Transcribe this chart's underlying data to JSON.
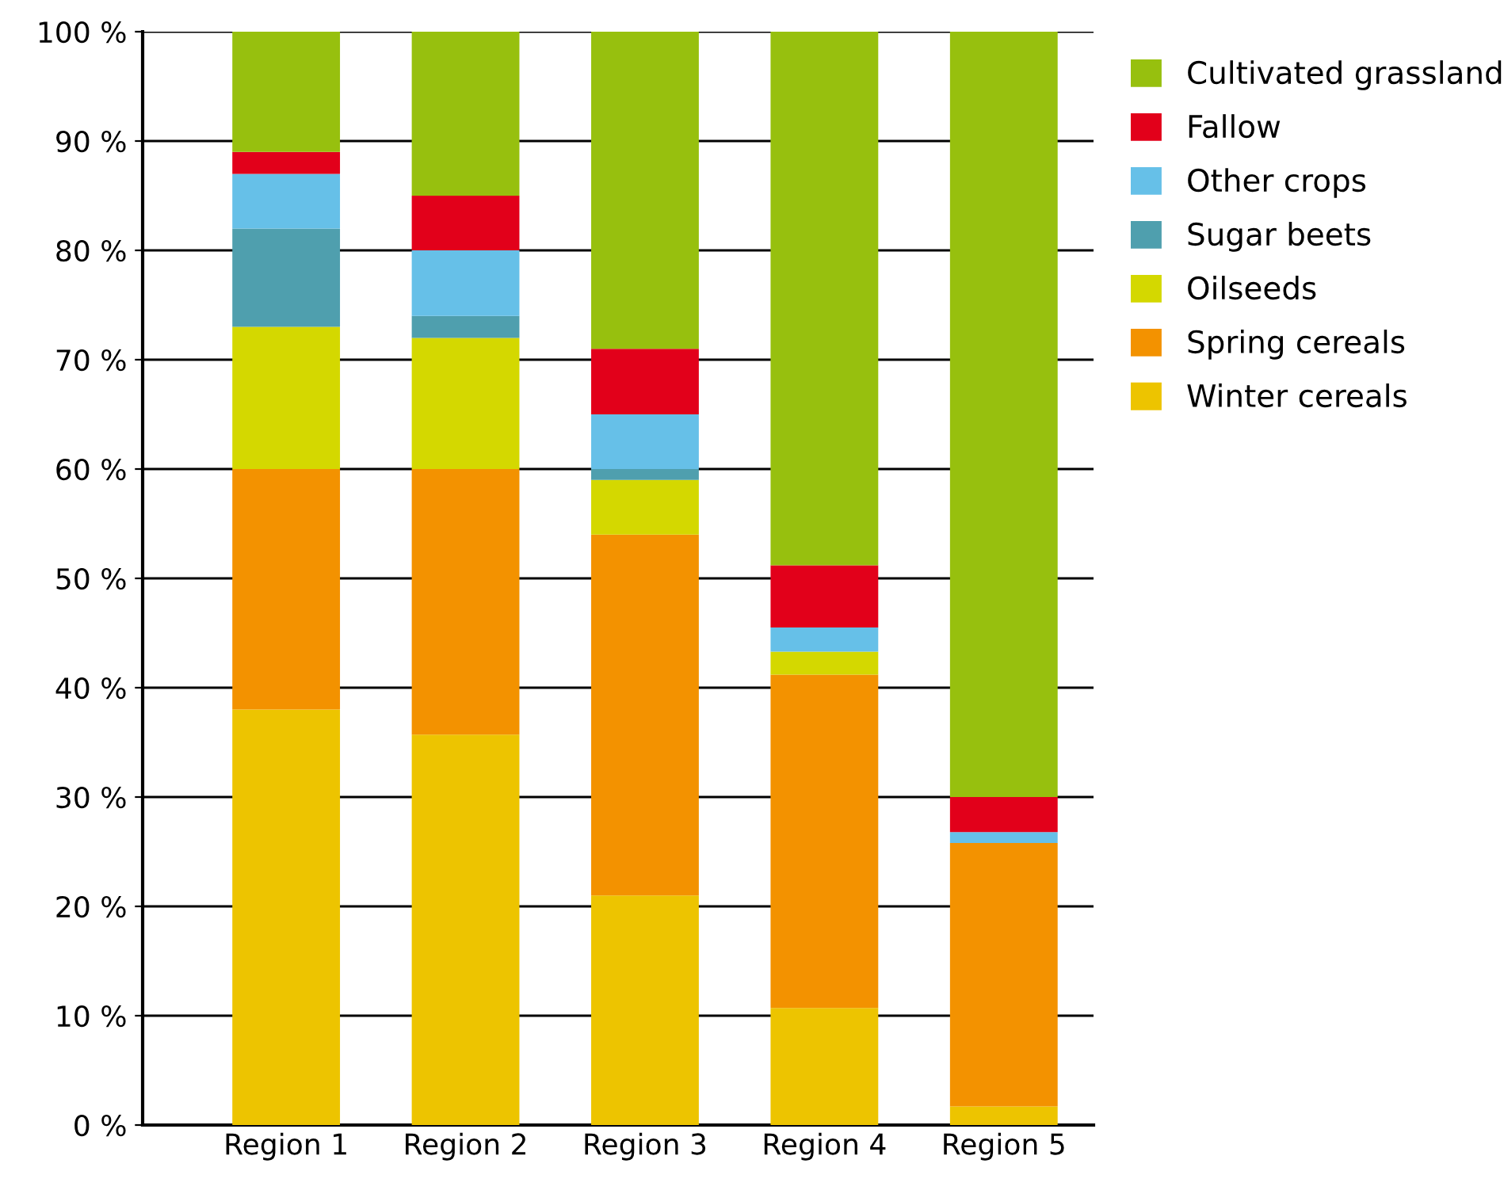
{
  "chart_data": {
    "type": "bar",
    "stacked": true,
    "categories": [
      "Region 1",
      "Region 2",
      "Region 3",
      "Region 4",
      "Region 5"
    ],
    "series": [
      {
        "name": "Winter cereals",
        "color": "#edc400",
        "values": [
          38,
          35.7,
          21,
          10.7,
          1.7
        ]
      },
      {
        "name": "Spring cereals",
        "color": "#f39200",
        "values": [
          22,
          24.3,
          33,
          30.5,
          24.1
        ]
      },
      {
        "name": "Oilseeds",
        "color": "#d4d800",
        "values": [
          13,
          12,
          5,
          2.1,
          0
        ]
      },
      {
        "name": "Sugar beets",
        "color": "#4f9fae",
        "values": [
          9,
          2,
          1,
          0,
          0
        ]
      },
      {
        "name": "Other crops",
        "color": "#66c0e8",
        "values": [
          5,
          6,
          5,
          2.2,
          1
        ]
      },
      {
        "name": "Fallow",
        "color": "#e2001a",
        "values": [
          2,
          5,
          6,
          5.7,
          3.2
        ]
      },
      {
        "name": "Cultivated grassland",
        "color": "#97c00e",
        "values": [
          11,
          15,
          29,
          48.8,
          70
        ]
      }
    ],
    "ylim": [
      0,
      100
    ],
    "yticks": [
      {
        "value": 0,
        "label": "0 %"
      },
      {
        "value": 10,
        "label": "10 %"
      },
      {
        "value": 20,
        "label": "20 %"
      },
      {
        "value": 30,
        "label": "30 %"
      },
      {
        "value": 40,
        "label": "40 %"
      },
      {
        "value": 50,
        "label": "50 %"
      },
      {
        "value": 60,
        "label": "60 %"
      },
      {
        "value": 70,
        "label": "70 %"
      },
      {
        "value": 80,
        "label": "80 %"
      },
      {
        "value": 90,
        "label": "90 %"
      },
      {
        "value": 100,
        "label": "100 %"
      }
    ],
    "grid": "y",
    "legend": "top right"
  }
}
